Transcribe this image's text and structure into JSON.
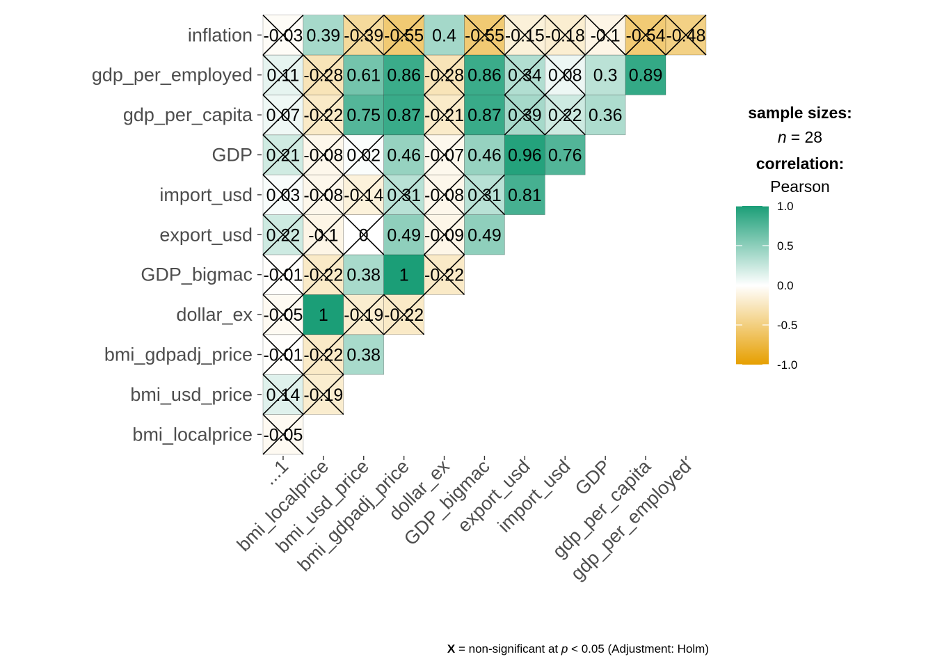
{
  "chart_data": {
    "type": "heatmap",
    "x_labels": [
      "...1",
      "bmi_localprice",
      "bmi_usd_price",
      "bmi_gdpadj_price",
      "dollar_ex",
      "GDP_bigmac",
      "export_usd",
      "import_usd",
      "GDP",
      "gdp_per_capita",
      "gdp_per_employed"
    ],
    "y_labels": [
      "bmi_localprice",
      "bmi_usd_price",
      "bmi_gdpadj_price",
      "dollar_ex",
      "GDP_bigmac",
      "export_usd",
      "import_usd",
      "GDP",
      "gdp_per_capita",
      "gdp_per_employed",
      "inflation"
    ],
    "values": [
      [
        -0.05
      ],
      [
        0.14,
        -0.19
      ],
      [
        -0.01,
        -0.22,
        0.38
      ],
      [
        -0.05,
        1,
        -0.19,
        -0.22
      ],
      [
        -0.01,
        -0.22,
        0.38,
        1,
        -0.22
      ],
      [
        0.22,
        -0.1,
        0,
        0.49,
        -0.09,
        0.49
      ],
      [
        0.03,
        -0.08,
        -0.14,
        0.31,
        -0.08,
        0.31,
        0.81
      ],
      [
        0.21,
        -0.08,
        0.02,
        0.46,
        -0.07,
        0.46,
        0.96,
        0.76
      ],
      [
        0.07,
        -0.22,
        0.75,
        0.87,
        -0.21,
        0.87,
        0.39,
        0.22,
        0.36
      ],
      [
        0.11,
        -0.28,
        0.61,
        0.86,
        -0.28,
        0.86,
        0.34,
        0.08,
        0.3,
        0.89
      ],
      [
        -0.03,
        0.39,
        -0.39,
        -0.55,
        0.4,
        -0.55,
        -0.15,
        -0.18,
        -0.1,
        -0.54,
        -0.48
      ]
    ],
    "labels": [
      [
        "-0.05"
      ],
      [
        "0.14",
        "-0.19"
      ],
      [
        "-0.01",
        "-0.22",
        "0.38"
      ],
      [
        "-0.05",
        "1",
        "-0.19",
        "-0.22"
      ],
      [
        "-0.01",
        "-0.22",
        "0.38",
        "1",
        "-0.22"
      ],
      [
        "0.22",
        "-0.1",
        "0",
        "0.49",
        "-0.09",
        "0.49"
      ],
      [
        "0.03",
        "-0.08",
        "-0.14",
        "0.31",
        "-0.08",
        "0.31",
        "0.81"
      ],
      [
        "0.21",
        "-0.08",
        "0.02",
        "0.46",
        "-0.07",
        "0.46",
        "0.96",
        "0.76"
      ],
      [
        "0.07",
        "-0.22",
        "0.75",
        "0.87",
        "-0.21",
        "0.87",
        "0.39",
        "0.22",
        "0.36"
      ],
      [
        "0.11",
        "-0.28",
        "0.61",
        "0.86",
        "-0.28",
        "0.86",
        "0.34",
        "0.08",
        "0.3",
        "0.89"
      ],
      [
        "-0.03",
        "0.39",
        "-0.39",
        "-0.55",
        "0.4",
        "-0.55",
        "-0.15",
        "-0.18",
        "-0.1",
        "-0.54",
        "-0.48"
      ]
    ],
    "significant": [
      [
        false
      ],
      [
        false,
        false
      ],
      [
        false,
        false,
        true
      ],
      [
        false,
        true,
        false,
        false
      ],
      [
        false,
        false,
        true,
        true,
        false
      ],
      [
        false,
        false,
        false,
        true,
        false,
        true
      ],
      [
        false,
        false,
        false,
        false,
        false,
        false,
        true
      ],
      [
        false,
        false,
        false,
        true,
        false,
        true,
        true,
        true
      ],
      [
        false,
        false,
        true,
        true,
        false,
        true,
        false,
        false,
        true
      ],
      [
        false,
        false,
        true,
        true,
        false,
        true,
        false,
        false,
        true,
        true
      ],
      [
        false,
        true,
        false,
        false,
        true,
        false,
        false,
        false,
        false,
        false,
        false
      ]
    ],
    "legend": {
      "sample_sizes_title": "sample sizes:",
      "n_label": "n",
      "n_value": "= 28",
      "correlation_title": "correlation:",
      "method": "Pearson",
      "scale_ticks": [
        "1.0",
        "0.5",
        "0.0",
        "-0.5",
        "-1.0"
      ],
      "scale_tick_values": [
        1,
        0.5,
        0,
        -0.5,
        -1
      ],
      "colors": {
        "high": "#1B9E77",
        "mid": "#FFFFFF",
        "low": "#E69F00"
      }
    },
    "caption": {
      "symbol": "X",
      "text_before_p": " = non-significant at ",
      "p": "p",
      "text_after_p": " < 0.05 (Adjustment: Holm)"
    }
  }
}
